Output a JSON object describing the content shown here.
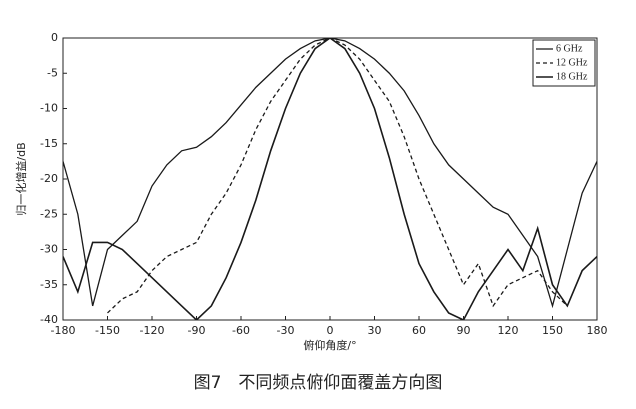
{
  "chart_data": {
    "type": "line",
    "caption": "图7　不同频点俯仰面覆盖方向图",
    "xlabel": "俯仰角度/°",
    "ylabel": "归一化增益/dB",
    "x": [
      -180,
      -170,
      -160,
      -150,
      -140,
      -130,
      -120,
      -110,
      -100,
      -90,
      -80,
      -70,
      -60,
      -50,
      -40,
      -30,
      -20,
      -10,
      0,
      10,
      20,
      30,
      40,
      50,
      60,
      70,
      80,
      90,
      100,
      110,
      120,
      130,
      140,
      150,
      160,
      170,
      180
    ],
    "series": [
      {
        "name": "6 GHz",
        "color": "#1a1a1a",
        "linestyle": "solid",
        "values": [
          -17.5,
          -25,
          -38,
          -30,
          -28,
          -26,
          -21,
          -18,
          -16,
          -15.5,
          -14,
          -12,
          -9.5,
          -7,
          -5,
          -3,
          -1.5,
          -0.4,
          0,
          -0.4,
          -1.5,
          -3,
          -5,
          -7.5,
          -11,
          -15,
          -18,
          -20,
          -22,
          -24,
          -25,
          -28,
          -31,
          -38,
          -30,
          -22,
          -17.5
        ]
      },
      {
        "name": "12 GHz",
        "color": "#1a1a1a",
        "linestyle": "dashed",
        "values": [
          null,
          null,
          null,
          -39,
          -37,
          -36,
          -33,
          -31,
          -30,
          -29,
          -25,
          -22,
          -18,
          -13,
          -9,
          -6,
          -3,
          -1,
          0,
          -1,
          -3,
          -6,
          -9,
          -14,
          -20,
          -25,
          -30,
          -35,
          -32,
          -38,
          -35,
          -34,
          -33,
          -36,
          -38,
          null,
          null
        ]
      },
      {
        "name": "18 GHz",
        "color": "#1a1a1a",
        "linestyle": "solid",
        "values": [
          -31,
          -36,
          -29,
          -29,
          -30,
          -32,
          -34,
          -36,
          -38,
          -40,
          -38,
          -34,
          -29,
          -23,
          -16,
          -10,
          -5,
          -1.5,
          0,
          -1.5,
          -5,
          -10,
          -17,
          -25,
          -32,
          -36,
          -39,
          -40,
          -36,
          -33,
          -30,
          -33,
          -27,
          -35,
          -38,
          -33,
          -31
        ]
      }
    ],
    "xlim": [
      -180,
      180
    ],
    "xticks": [
      -180,
      -150,
      -120,
      -90,
      -60,
      -30,
      0,
      30,
      60,
      90,
      120,
      150,
      180
    ],
    "ylim": [
      -40,
      0
    ],
    "yticks": [
      0,
      -5,
      -10,
      -15,
      -20,
      -25,
      -30,
      -35,
      -40
    ],
    "legend": "upper right"
  }
}
